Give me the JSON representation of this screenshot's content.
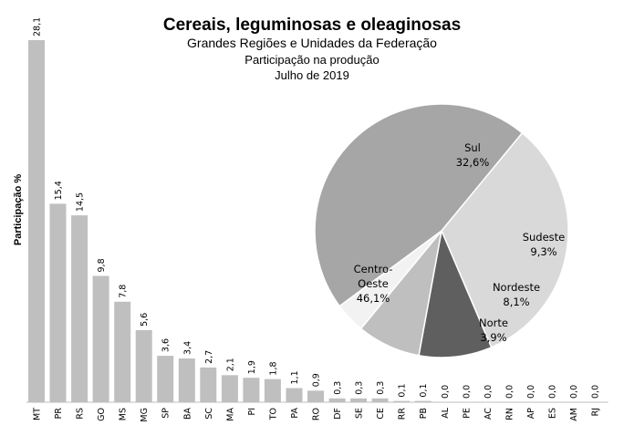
{
  "titles": {
    "title": "Cereais, leguminosas  e oleaginosas",
    "subtitle1": "Grandes Regiões  e Unidades da Federação",
    "subtitle2": "Participação na  produção",
    "subtitle3": "Julho  de 2019"
  },
  "chart_data": [
    {
      "type": "bar",
      "ylabel": "Participação %",
      "ylim": [
        0,
        28.1
      ],
      "bar_color": "#bfbfbf",
      "categories": [
        "MT",
        "PR",
        "RS",
        "GO",
        "MS",
        "MG",
        "SP",
        "BA",
        "SC",
        "MA",
        "PI",
        "TO",
        "PA",
        "RO",
        "DF",
        "SE",
        "CE",
        "RR",
        "PB",
        "AL",
        "PE",
        "AC",
        "RN",
        "AP",
        "ES",
        "AM",
        "RJ"
      ],
      "values": [
        28.1,
        15.4,
        14.5,
        9.8,
        7.8,
        5.6,
        3.6,
        3.4,
        2.7,
        2.1,
        1.9,
        1.8,
        1.1,
        0.9,
        0.3,
        0.3,
        0.3,
        0.1,
        0.1,
        0.0,
        0.0,
        0.0,
        0.0,
        0.0,
        0.0,
        0.0,
        0.0
      ],
      "value_labels": [
        "28,1",
        "15,4",
        "14,5",
        "9,8",
        "7,8",
        "5,6",
        "3,6",
        "3,4",
        "2,7",
        "2,1",
        "1,9",
        "1,8",
        "1,1",
        "0,9",
        "0,3",
        "0,3",
        "0,3",
        "0,1",
        "0,1",
        "0,0",
        "0,0",
        "0,0",
        "0,0",
        "0,0",
        "0,0",
        "0,0",
        "0,0"
      ]
    },
    {
      "type": "pie",
      "slices": [
        {
          "name_lines": [
            "Sul"
          ],
          "value": 32.6,
          "label": "32,6%",
          "color": "#d9d9d9"
        },
        {
          "name_lines": [
            "Sudeste"
          ],
          "value": 9.3,
          "label": "9,3%",
          "color": "#5f5f5f"
        },
        {
          "name_lines": [
            "Nordeste"
          ],
          "value": 8.1,
          "label": "8,1%",
          "color": "#bfbfbf"
        },
        {
          "name_lines": [
            "Norte"
          ],
          "value": 3.9,
          "label": "3,9%",
          "color": "#f2f2f2"
        },
        {
          "name_lines": [
            "Centro-",
            "Oeste"
          ],
          "value": 46.1,
          "label": "46,1%",
          "color": "#a6a6a6"
        }
      ]
    }
  ]
}
